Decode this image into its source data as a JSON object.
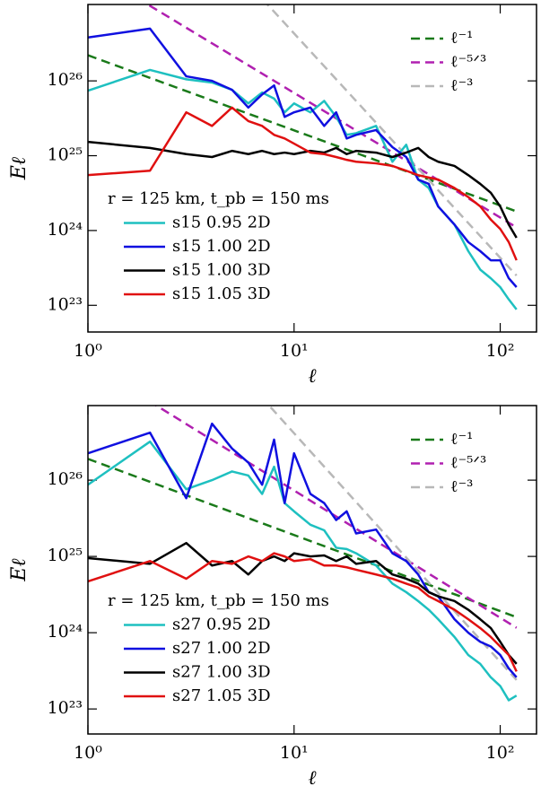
{
  "chart_data": [
    {
      "type": "line",
      "xlabel": "ℓ",
      "ylabel": "Eℓ",
      "annotation": "r = 125 km, t_pb = 150 ms",
      "log_x": true,
      "log_y": true,
      "xlim": [
        1,
        150
      ],
      "ylim": [
        4.4e+22,
        1.05e+27
      ],
      "xticks": [
        {
          "value": 1,
          "label": "10⁰"
        },
        {
          "value": 10,
          "label": "10¹"
        },
        {
          "value": 100,
          "label": "10²"
        }
      ],
      "yticks": [
        {
          "value": 1e+23,
          "label": "10²³"
        },
        {
          "value": 1e+24,
          "label": "10²⁴"
        },
        {
          "value": 1e+25,
          "label": "10²⁵"
        },
        {
          "value": 1e+26,
          "label": "10²⁶"
        }
      ],
      "legends": {
        "dashed": "upper right",
        "solid": "lower left"
      },
      "x": [
        1,
        2,
        3,
        4,
        5,
        6,
        7,
        8,
        9,
        10,
        12,
        14,
        16,
        18,
        20,
        25,
        30,
        35,
        40,
        45,
        50,
        60,
        70,
        80,
        90,
        100,
        110,
        120
      ],
      "series": [
        {
          "name": "ℓ⁻¹",
          "color": "#1a7a1a",
          "dashed": true,
          "x": [
            1,
            120
          ],
          "values": [
            2.2e+26,
            1.8e+24
          ]
        },
        {
          "name": "ℓ⁻⁵ᐟ³",
          "color": "#b020b0",
          "dashed": true,
          "x": [
            1,
            120
          ],
          "values": [
            3.2e+27,
            1.1e+24
          ]
        },
        {
          "name": "ℓ⁻³",
          "color": "#b8b8b8",
          "dashed": true,
          "x": [
            1,
            120
          ],
          "values": [
            4.3e+29,
            2.5e+23
          ]
        },
        {
          "name": "s15 0.95 2D",
          "color": "#1ec0c0",
          "values": [
            7.4e+25,
            1.4e+26,
            1.05e+26,
            9.5e+25,
            7.6e+25,
            5e+25,
            7e+25,
            5.8e+25,
            3.8e+25,
            5e+25,
            3.8e+25,
            5.4e+25,
            3.3e+25,
            1.9e+25,
            2e+25,
            2.5e+25,
            8.3e+24,
            1.4e+25,
            4.8e+24,
            3.7e+24,
            2.1e+24,
            1.2e+24,
            5.3e+23,
            3e+23,
            2.3e+23,
            1.75e+23,
            1.2e+23,
            8.8e+22
          ]
        },
        {
          "name": "s15 1.00 2D",
          "color": "#1010e0",
          "values": [
            3.8e+26,
            5e+26,
            1.15e+26,
            1e+26,
            7.6e+25,
            4.4e+25,
            6.6e+25,
            8.7e+25,
            3.3e+25,
            3.8e+25,
            4.4e+25,
            2.5e+25,
            3.8e+25,
            1.7e+25,
            1.9e+25,
            2.2e+25,
            1.3e+25,
            9.6e+24,
            4.8e+24,
            4.2e+24,
            2.1e+24,
            1.2e+24,
            7e+23,
            5.3e+23,
            4e+23,
            4e+23,
            2.3e+23,
            1.75e+23
          ]
        },
        {
          "name": "s15 1.00 3D",
          "color": "#000000",
          "values": [
            1.53e+25,
            1.27e+25,
            1.05e+25,
            9.6e+24,
            1.16e+25,
            1.05e+25,
            1.16e+25,
            1.05e+25,
            1.1e+25,
            1.05e+25,
            1.16e+25,
            1.1e+25,
            1.27e+25,
            1.05e+25,
            1.16e+25,
            1.1e+25,
            9.6e+24,
            1.1e+25,
            1.27e+25,
            9.6e+24,
            8.3e+24,
            7.3e+24,
            5.5e+24,
            4.2e+24,
            3.2e+24,
            2.1e+24,
            1.2e+24,
            8e+23
          ]
        },
        {
          "name": "s15 1.05 3D",
          "color": "#e01010",
          "values": [
            5.5e+24,
            6.3e+24,
            3.8e+25,
            2.5e+25,
            4.4e+25,
            2.9e+25,
            2.5e+25,
            1.9e+25,
            1.7e+25,
            1.45e+25,
            1.1e+25,
            1.05e+25,
            9.6e+24,
            8.8e+24,
            8.3e+24,
            7.9e+24,
            7.3e+24,
            6.3e+24,
            5.5e+24,
            5.1e+24,
            4.8e+24,
            3.7e+24,
            2.8e+24,
            2.1e+24,
            1.4e+24,
            1.05e+24,
            7e+23,
            4e+23
          ]
        }
      ]
    },
    {
      "type": "line",
      "xlabel": "ℓ",
      "ylabel": "Eℓ",
      "annotation": "r = 125 km, t_pb = 150 ms",
      "log_x": true,
      "log_y": true,
      "xlim": [
        1,
        150
      ],
      "ylim": [
        4.7e+22,
        9.5e+26
      ],
      "xticks": [
        {
          "value": 1,
          "label": "10⁰"
        },
        {
          "value": 10,
          "label": "10¹"
        },
        {
          "value": 100,
          "label": "10²"
        }
      ],
      "yticks": [
        {
          "value": 1e+23,
          "label": "10²³"
        },
        {
          "value": 1e+24,
          "label": "10²⁴"
        },
        {
          "value": 1e+25,
          "label": "10²⁵"
        },
        {
          "value": 1e+26,
          "label": "10²⁶"
        }
      ],
      "legends": {
        "dashed": "upper right",
        "solid": "lower left"
      },
      "x": [
        1,
        2,
        3,
        4,
        5,
        6,
        7,
        8,
        9,
        10,
        12,
        14,
        16,
        18,
        20,
        25,
        30,
        35,
        40,
        45,
        50,
        60,
        70,
        80,
        90,
        100,
        110,
        120
      ],
      "series": [
        {
          "name": "ℓ⁻¹",
          "color": "#1a7a1a",
          "dashed": true,
          "x": [
            1,
            120
          ],
          "values": [
            1.9e+26,
            1.6e+24
          ]
        },
        {
          "name": "ℓ⁻⁵ᐟ³",
          "color": "#b020b0",
          "dashed": true,
          "x": [
            1,
            120
          ],
          "values": [
            3.4e+27,
            1.16e+24
          ]
        },
        {
          "name": "ℓ⁻³",
          "color": "#b8b8b8",
          "dashed": true,
          "x": [
            1,
            120
          ],
          "values": [
            4.1e+29,
            2.4e+23
          ]
        },
        {
          "name": "s27 0.95 2D",
          "color": "#1ec0c0",
          "values": [
            8.7e+25,
            3.2e+26,
            7.6e+25,
            1e+26,
            1.3e+26,
            1.15e+26,
            6.6e+25,
            1.5e+26,
            5e+25,
            3.9e+25,
            2.6e+25,
            2.2e+25,
            1.3e+25,
            1.25e+25,
            1.1e+25,
            7.6e+24,
            4.4e+24,
            3.4e+24,
            2.6e+24,
            2e+24,
            1.5e+24,
            8.8e+23,
            5.1e+23,
            3.9e+23,
            2.6e+23,
            2e+23,
            1.3e+23,
            1.5e+23
          ]
        },
        {
          "name": "s27 1.00 2D",
          "color": "#1010e0",
          "values": [
            2.25e+26,
            4.2e+26,
            5.8e+25,
            5.5e+26,
            2.6e+26,
            1.7e+26,
            8.7e+25,
            3.4e+26,
            5e+25,
            2.25e+26,
            6.6e+25,
            5e+25,
            3e+25,
            3.9e+25,
            2e+25,
            2.25e+25,
            1.1e+25,
            8.7e+24,
            5.8e+24,
            3.4e+24,
            3e+24,
            1.5e+24,
            1e+24,
            7.6e+23,
            6.6e+23,
            5.1e+23,
            3.4e+23,
            2.6e+23
          ]
        },
        {
          "name": "s27 1.00 3D",
          "color": "#000000",
          "values": [
            9.5e+24,
            8e+24,
            1.5e+25,
            7.6e+24,
            8.7e+24,
            5.8e+24,
            8.7e+24,
            1e+25,
            8.7e+24,
            1.1e+25,
            1e+25,
            1.03e+25,
            8.7e+24,
            1e+25,
            8e+24,
            8.7e+24,
            5.8e+24,
            5.1e+24,
            4.4e+24,
            3.4e+24,
            3e+24,
            2.6e+24,
            2e+24,
            1.5e+24,
            1.15e+24,
            7.6e+23,
            5.1e+23,
            3.9e+23
          ]
        },
        {
          "name": "s27 1.05 3D",
          "color": "#e01010",
          "values": [
            4.7e+24,
            8.7e+24,
            5.1e+24,
            8.7e+24,
            8e+24,
            1e+25,
            8.7e+24,
            1.1e+25,
            1e+25,
            8.7e+24,
            9.2e+24,
            7.6e+24,
            7.6e+24,
            7.2e+24,
            6.7e+24,
            5.8e+24,
            5.1e+24,
            4.4e+24,
            3.9e+24,
            3e+24,
            2.6e+24,
            2e+24,
            1.5e+24,
            1.15e+24,
            8.8e+23,
            6.6e+23,
            5.1e+23,
            3.1e+23
          ]
        }
      ]
    }
  ]
}
